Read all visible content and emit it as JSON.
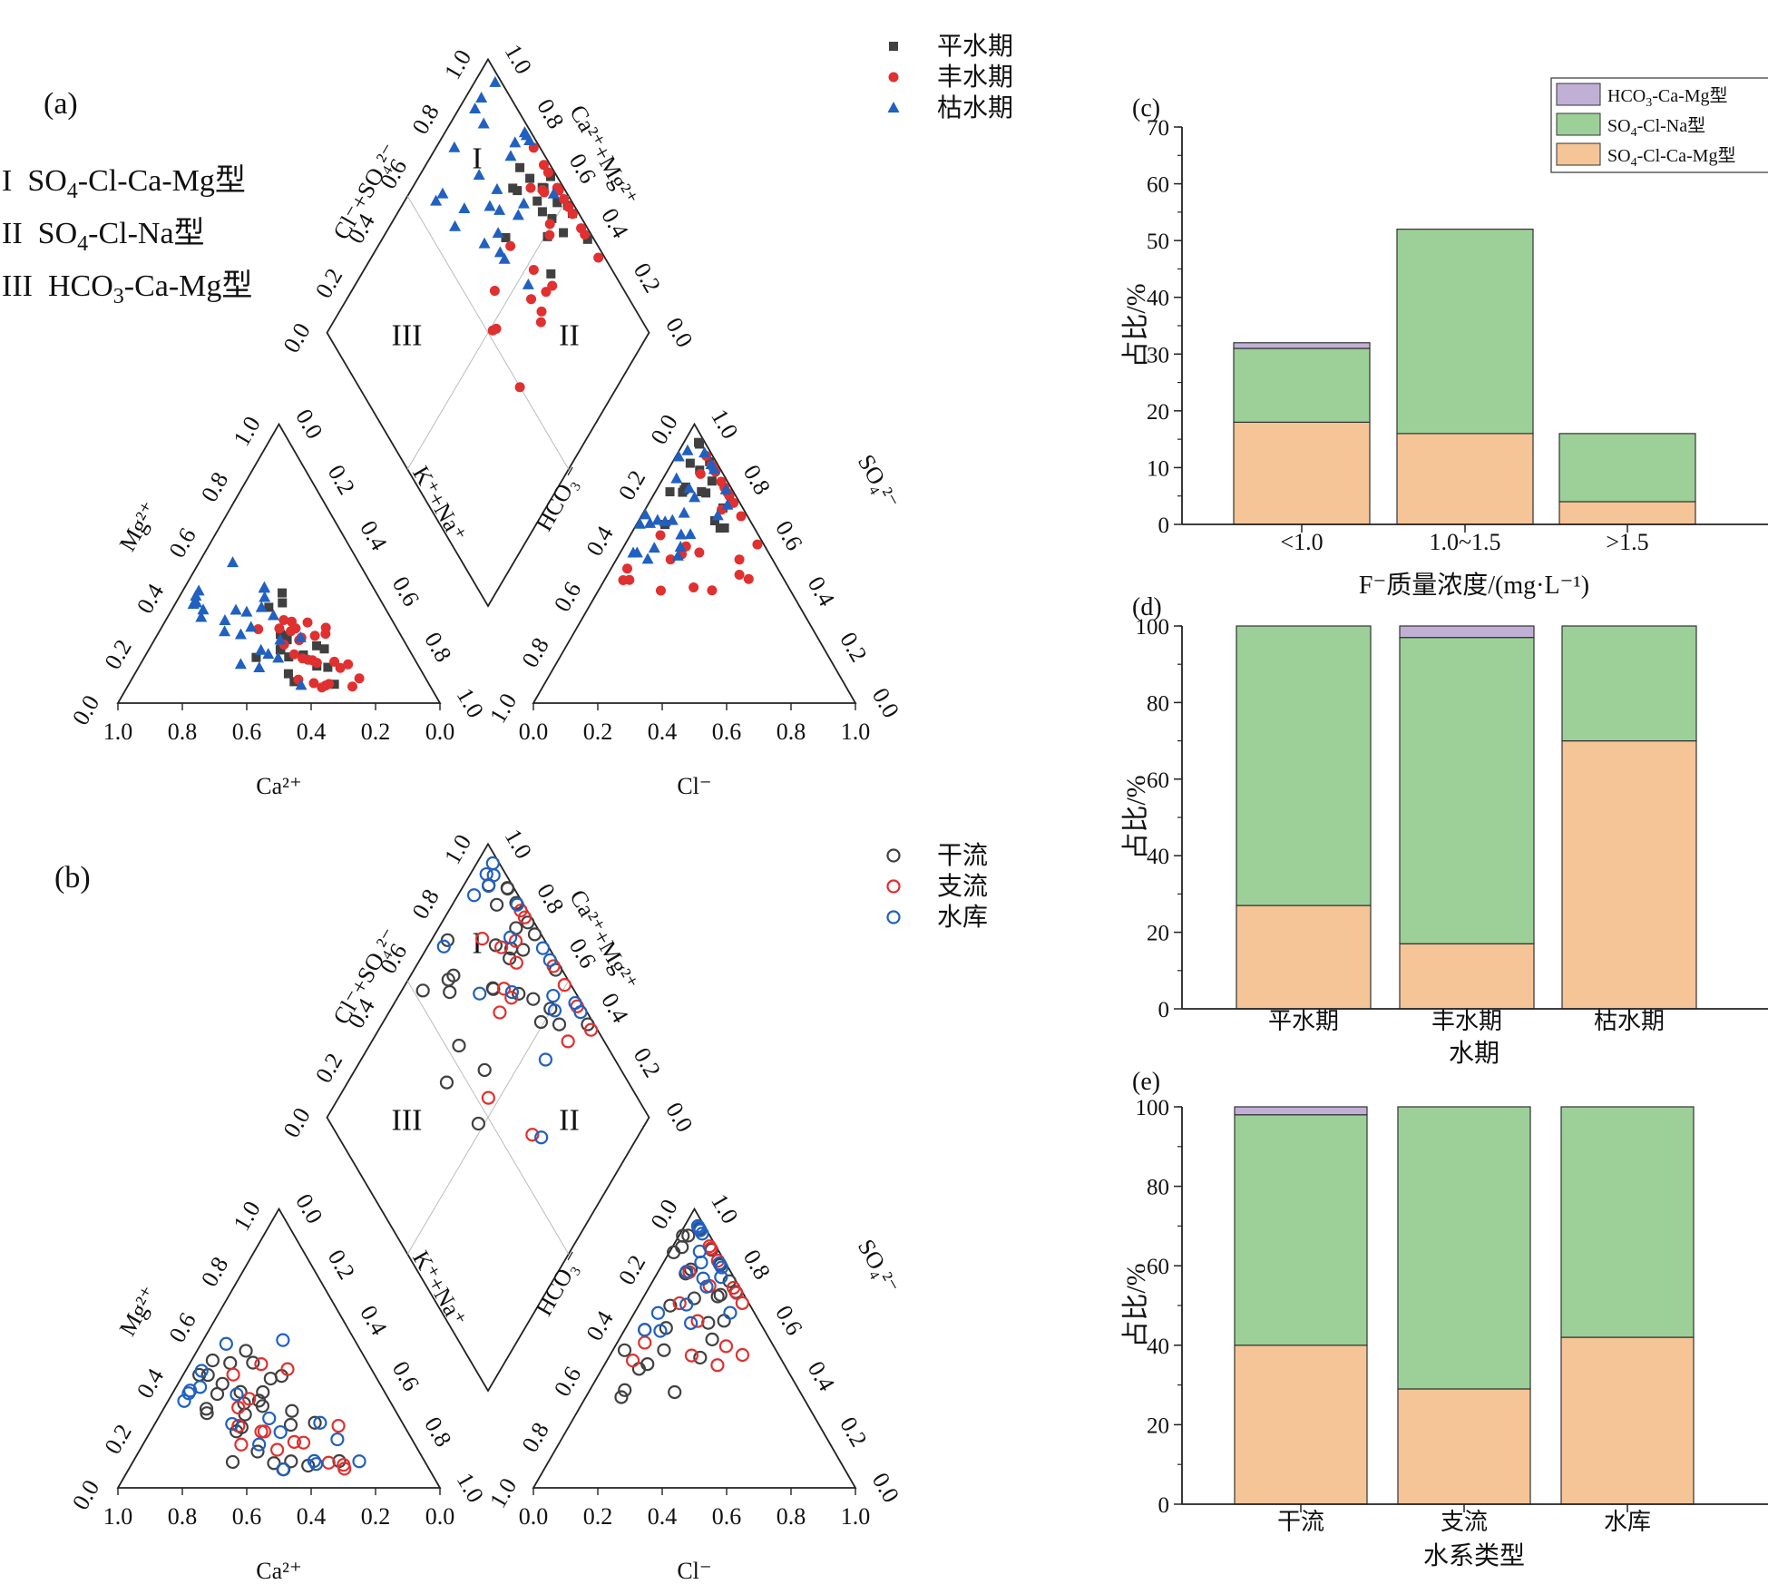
{
  "piper_panels": [
    {
      "panel_label": "(a)",
      "types": [
        {
          "roman": "I",
          "name": "SO4-Cl-Ca-Mg型"
        },
        {
          "roman": "II",
          "name": "SO4-Cl-Na型"
        },
        {
          "roman": "III",
          "name": "HCO3-Ca-Mg型"
        }
      ],
      "legend": [
        {
          "name": "平水期",
          "marker": "square",
          "color": "#404040"
        },
        {
          "name": "丰水期",
          "marker": "circle",
          "color": "#e03030"
        },
        {
          "name": "枯水期",
          "marker": "triangle",
          "color": "#2060c0"
        }
      ],
      "labels": {
        "mg": "Mg²⁺",
        "ca": "Ca²⁺",
        "kna": "K⁺+Na⁺",
        "hco3": "HCO₃⁻",
        "so4": "SO₄²⁻",
        "cl": "Cl⁻",
        "clso4": "Cl⁻+SO₄²⁻",
        "camg": "Ca²⁺+Mg²⁺"
      },
      "ticks": [
        "0.0",
        "0.2",
        "0.4",
        "0.6",
        "0.8",
        "1.0"
      ],
      "region_labels": [
        "I",
        "II",
        "III"
      ]
    },
    {
      "panel_label": "(b)",
      "types": [],
      "legend": [
        {
          "name": "干流",
          "marker": "ring",
          "color": "#404040"
        },
        {
          "name": "支流",
          "marker": "ring",
          "color": "#e03030"
        },
        {
          "name": "水库",
          "marker": "ring",
          "color": "#2060c0"
        }
      ],
      "labels": {
        "mg": "Mg²⁺",
        "ca": "Ca²⁺",
        "kna": "K⁺+Na⁺",
        "hco3": "HCO₃⁻",
        "so4": "SO₄²⁻",
        "cl": "Cl⁻",
        "clso4": "Cl⁻+SO₄²⁻",
        "camg": "Ca²⁺+Mg²⁺"
      },
      "ticks": [
        "0.0",
        "0.2",
        "0.4",
        "0.6",
        "0.8",
        "1.0"
      ],
      "region_labels": [
        "I",
        "II",
        "III"
      ]
    }
  ],
  "chart_data": [
    {
      "type": "bar",
      "stacked": true,
      "panel_label": "(c)",
      "categories": [
        "<1.0",
        "1.0~1.5",
        ">1.5"
      ],
      "series": [
        {
          "name": "SO4-Cl-Ca-Mg型",
          "color": "#f5c597",
          "values": [
            18,
            16,
            4
          ]
        },
        {
          "name": "SO4-Cl-Na型",
          "color": "#9cd098",
          "values": [
            13,
            36,
            12
          ]
        },
        {
          "name": "HCO3-Ca-Mg型",
          "color": "#c0b0d6",
          "values": [
            1,
            0,
            0
          ]
        }
      ],
      "legend_order": [
        "HCO3-Ca-Mg型",
        "SO4-Cl-Na型",
        "SO4-Cl-Ca-Mg型"
      ],
      "xlabel": "F⁻质量浓度/(mg·L⁻¹)",
      "ylabel": "占比/%",
      "ylim": [
        0,
        70
      ],
      "yticks": [
        0,
        10,
        20,
        30,
        40,
        50,
        60,
        70
      ]
    },
    {
      "type": "bar",
      "stacked": true,
      "panel_label": "(d)",
      "categories": [
        "平水期",
        "丰水期",
        "枯水期"
      ],
      "series": [
        {
          "name": "SO4-Cl-Ca-Mg型",
          "color": "#f5c597",
          "values": [
            27,
            17,
            70
          ]
        },
        {
          "name": "SO4-Cl-Na型",
          "color": "#9cd098",
          "values": [
            73,
            80,
            30
          ]
        },
        {
          "name": "HCO3-Ca-Mg型",
          "color": "#c0b0d6",
          "values": [
            0,
            3,
            0
          ]
        }
      ],
      "xlabel": "水期",
      "ylabel": "占比/%",
      "ylim": [
        0,
        100
      ],
      "yticks": [
        0,
        20,
        40,
        60,
        80,
        100
      ]
    },
    {
      "type": "bar",
      "stacked": true,
      "panel_label": "(e)",
      "categories": [
        "干流",
        "支流",
        "水库"
      ],
      "series": [
        {
          "name": "SO4-Cl-Ca-Mg型",
          "color": "#f5c597",
          "values": [
            40,
            29,
            42
          ]
        },
        {
          "name": "SO4-Cl-Na型",
          "color": "#9cd098",
          "values": [
            58,
            71,
            58
          ]
        },
        {
          "name": "HCO3-Ca-Mg型",
          "color": "#c0b0d6",
          "values": [
            2,
            0,
            0
          ]
        }
      ],
      "xlabel": "水系类型",
      "ylabel": "占比/%",
      "ylim": [
        0,
        100
      ],
      "yticks": [
        0,
        20,
        40,
        60,
        80,
        100
      ]
    }
  ]
}
